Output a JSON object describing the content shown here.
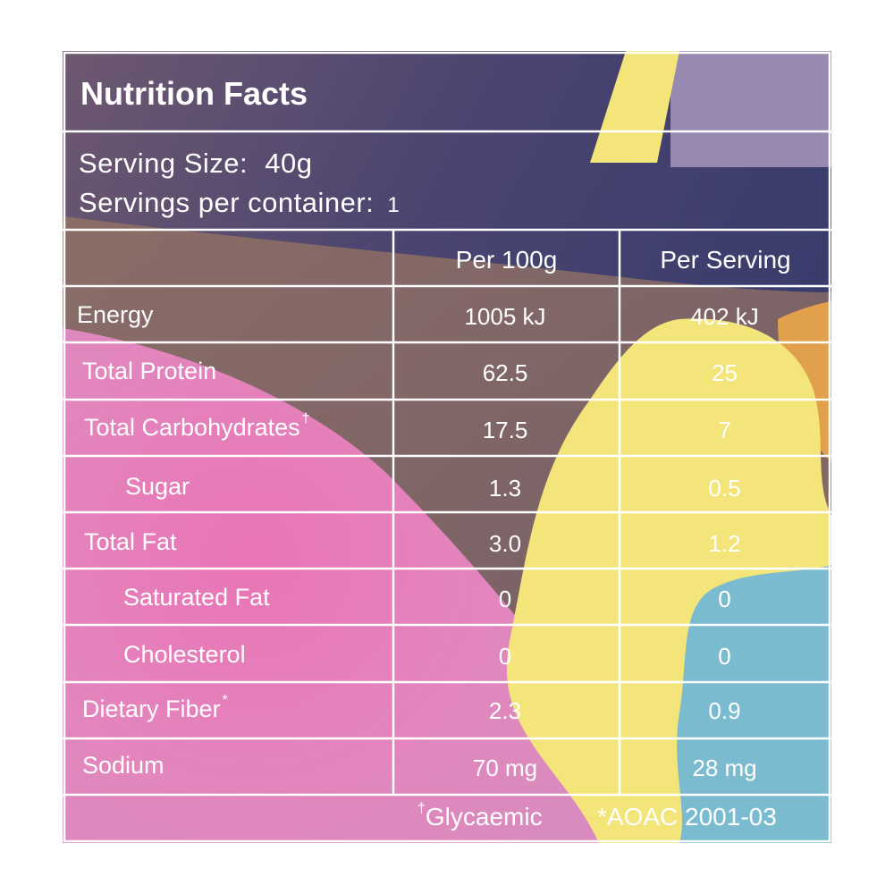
{
  "title": "Nutrition Facts",
  "serving_size_label": "Serving Size:",
  "serving_size_value": "40g",
  "servings_per_container_label": "Servings per container:",
  "servings_per_container_value": "1",
  "columns": [
    "Per 100g",
    "Per Serving"
  ],
  "rows": [
    {
      "label": "Energy",
      "per_100g": "1005 kJ",
      "per_serving": "402 kJ"
    },
    {
      "label": "Total Protein",
      "per_100g": "62.5",
      "per_serving": "25"
    },
    {
      "label": "Total Carbohydrates",
      "mark": "†",
      "per_100g": "17.5",
      "per_serving": "7"
    },
    {
      "label": "Sugar",
      "per_100g": "1.3",
      "per_serving": "0.5"
    },
    {
      "label": "Total Fat",
      "per_100g": "3.0",
      "per_serving": "1.2"
    },
    {
      "label": "Saturated Fat",
      "per_100g": "0",
      "per_serving": "0"
    },
    {
      "label": "Cholesterol",
      "per_100g": "0",
      "per_serving": "0"
    },
    {
      "label": "Dietary Fiber",
      "mark": "*",
      "per_100g": "2.3",
      "per_serving": "0.9"
    },
    {
      "label": "Sodium",
      "per_100g": "70 mg",
      "per_serving": "28 mg"
    }
  ],
  "footnotes": {
    "glycaemic_mark": "†",
    "glycaemic_text": "Glycaemic",
    "aoac": "*AOAC 2001-03"
  },
  "colors": {
    "navy": "#3c3d6e",
    "brown": "#8e6f63",
    "pink": "#e477b4",
    "yellow": "#f4e57a",
    "lavender": "#9889b0",
    "blue": "#7bbbcf",
    "orange": "#e0a04c",
    "line": "#ffffff"
  }
}
